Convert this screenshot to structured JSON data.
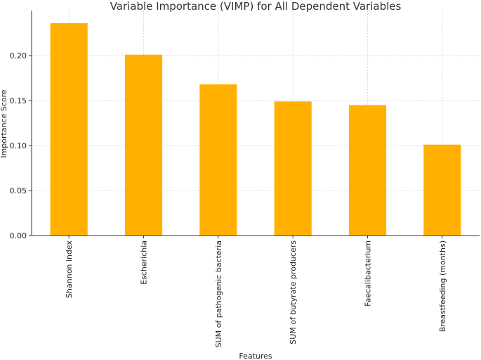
{
  "chart_data": {
    "type": "bar",
    "title": "Variable Importance (VIMP) for All Dependent Variables",
    "xlabel": "Features",
    "ylabel": "Importance Score",
    "categories": [
      "Shannon index",
      "Escherichia",
      "SUM of pathogenic bacteria",
      "SUM of butyrate producers",
      "Faecalibacterium",
      "Breastfeeding (months)"
    ],
    "values": [
      0.236,
      0.201,
      0.168,
      0.149,
      0.145,
      0.101
    ],
    "ylim": [
      0,
      0.25
    ],
    "yticks": [
      0.0,
      0.05,
      0.1,
      0.15,
      0.2
    ],
    "ytick_labels": [
      "0.00",
      "0.05",
      "0.10",
      "0.15",
      "0.20"
    ],
    "bar_color": "#ffb000",
    "grid": true
  }
}
